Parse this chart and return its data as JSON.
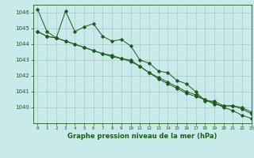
{
  "background_color": "#c8eaea",
  "grid_color": "#b0c8c8",
  "line_color": "#1a5e1a",
  "title": "Graphe pression niveau de la mer (hPa)",
  "ylim": [
    1039.0,
    1046.5
  ],
  "xlim": [
    -0.5,
    23
  ],
  "yticks": [
    1040,
    1041,
    1042,
    1043,
    1044,
    1045,
    1046
  ],
  "xticks": [
    0,
    1,
    2,
    3,
    4,
    5,
    6,
    7,
    8,
    9,
    10,
    11,
    12,
    13,
    14,
    15,
    16,
    17,
    18,
    19,
    20,
    21,
    22,
    23
  ],
  "series": [
    [
      1046.2,
      1044.8,
      1044.4,
      1046.1,
      1044.8,
      1045.1,
      1045.3,
      1044.5,
      1044.2,
      1044.3,
      1043.9,
      1043.0,
      1042.8,
      1042.3,
      1042.2,
      1041.7,
      1041.5,
      1041.0,
      1040.4,
      1040.4,
      1040.1,
      1040.1,
      1039.9,
      1039.6
    ],
    [
      1044.8,
      1044.5,
      1044.4,
      1044.2,
      1044.0,
      1043.8,
      1043.6,
      1043.4,
      1043.3,
      1043.1,
      1043.0,
      1042.6,
      1042.2,
      1041.9,
      1041.6,
      1041.3,
      1041.0,
      1040.8,
      1040.5,
      1040.2,
      1040.1,
      1040.1,
      1040.0,
      1039.7
    ],
    [
      1044.8,
      1044.5,
      1044.4,
      1044.2,
      1044.0,
      1043.8,
      1043.6,
      1043.4,
      1043.2,
      1043.1,
      1042.9,
      1042.6,
      1042.2,
      1041.8,
      1041.5,
      1041.2,
      1040.9,
      1040.7,
      1040.5,
      1040.3,
      1040.0,
      1039.8,
      1039.5,
      1039.3
    ]
  ]
}
